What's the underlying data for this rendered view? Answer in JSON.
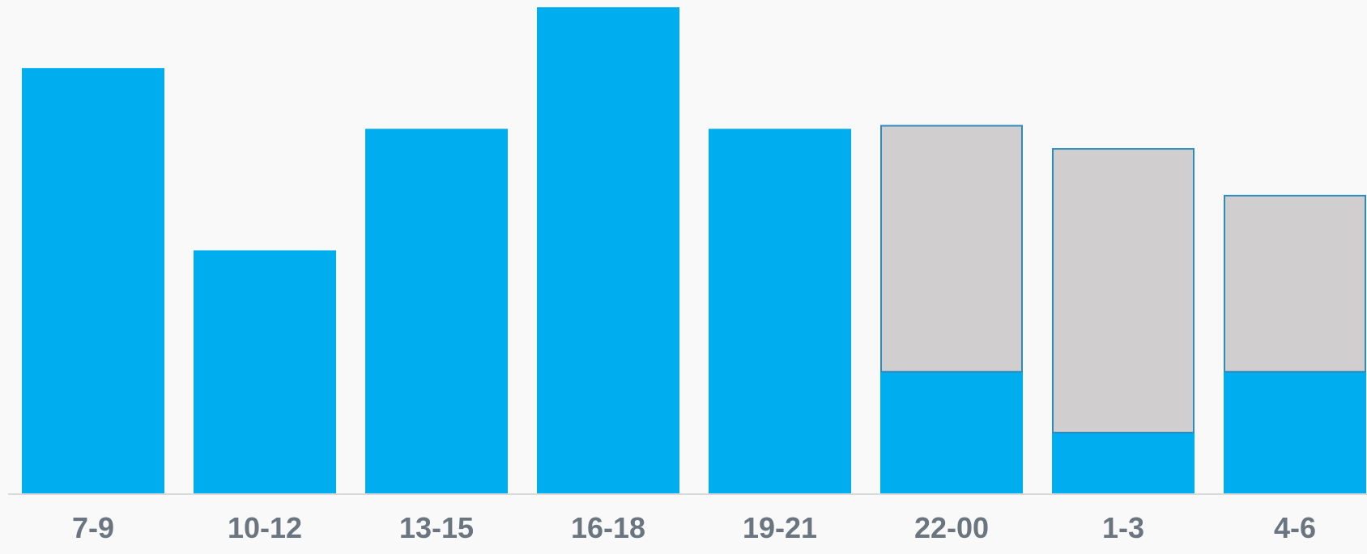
{
  "chart_data": {
    "type": "bar",
    "categories": [
      "7-9",
      "10-12",
      "13-15",
      "16-18",
      "19-21",
      "22-00",
      "1-3",
      "4-6"
    ],
    "series": [
      {
        "values": [
          7,
          4,
          6,
          8,
          6,
          2,
          1,
          2
        ],
        "color": "#00aeef"
      },
      {
        "values": [
          0,
          0,
          0,
          0,
          0,
          4.05,
          4.67,
          2.9
        ],
        "color": "#d0cecf",
        "border_color": "#2e8bc0"
      }
    ],
    "ylim": [
      0,
      8
    ],
    "grid": false,
    "legend": "none",
    "axis_color": "#d9d9d9",
    "tick_label_color": "#6b7580",
    "background": "#f9f9f9"
  }
}
